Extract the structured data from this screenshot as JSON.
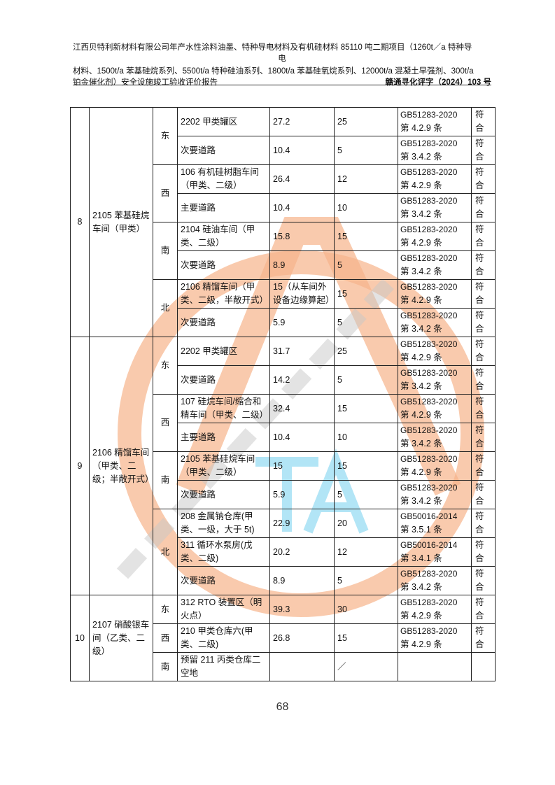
{
  "header": {
    "title_line1": "江西贝特利新材料有限公司年产水性涂料油墨、特种导电材料及有机硅材料 85110 吨二期项目（1260t／a 特种导",
    "title_line1b": "电",
    "title_line2": "材料、1500t/a 苯基硅烷系列、5500t/a 特种硅油系列、1800t/a 苯基硅氧烷系列、12000t/a 混凝土早强剂、300t/a",
    "title_line3": "铂金催化剂）安全设施竣工验收评价报告",
    "doc_code": "赣通寻化评字（2024）103 号"
  },
  "table": {
    "groups": [
      {
        "no": "8",
        "name": "2105 苯基硅烷车间（甲类）",
        "dirs": [
          {
            "dir": "东",
            "rows": [
              {
                "target": "2202 甲类罐区",
                "actual": "27.2",
                "required": "25",
                "std": "GB51283-2020",
                "clause": "第 4.2.9 条",
                "result": "符合"
              },
              {
                "target": "次要道路",
                "actual": "10.4",
                "required": "5",
                "std": "GB51283-2020",
                "clause": "第 3.4.2 条",
                "result": "符合"
              }
            ]
          },
          {
            "dir": "西",
            "rows": [
              {
                "target": "106 有机硅树脂车间（甲类、二级）",
                "actual": "26.4",
                "required": "12",
                "std": "GB51283-2020",
                "clause": "第 4.2.9 条",
                "result": "符合"
              },
              {
                "target": "主要道路",
                "actual": "10.4",
                "required": "10",
                "std": "GB51283-2020",
                "clause": "第 3.4.2 条",
                "result": "符合"
              }
            ]
          },
          {
            "dir": "南",
            "rows": [
              {
                "target": "2104 硅油车间（甲类、二级）",
                "actual": "15.8",
                "required": "15",
                "std": "GB51283-2020",
                "clause": "第 4.2.9 条",
                "result": "符合"
              },
              {
                "target": "次要道路",
                "actual": "8.9",
                "required": "5",
                "std": "GB51283-2020",
                "clause": "第 3.4.2 条",
                "result": "符合"
              }
            ]
          },
          {
            "dir": "北",
            "rows": [
              {
                "target": "2106 精馏车间（甲类、二级，半敞开式）",
                "actual": "15（从车间外设备边缘算起）",
                "required": "15",
                "std": "GB51283-2020",
                "clause": "第 4.2.9 条",
                "result": "符合"
              },
              {
                "target": "次要道路",
                "actual": "5.9",
                "required": "5",
                "std": "GB51283-2020",
                "clause": "第 3.4.2 条",
                "result": "符合"
              }
            ]
          }
        ]
      },
      {
        "no": "9",
        "name": "2106 精馏车间（甲类、二级；半敞开式）",
        "dirs": [
          {
            "dir": "东",
            "rows": [
              {
                "target": "2202 甲类罐区",
                "actual": "31.7",
                "required": "25",
                "std": "GB51283-2020",
                "clause": "第 4.2.9 条",
                "result": "符合"
              },
              {
                "target": "次要道路",
                "actual": "14.2",
                "required": "5",
                "std": "GB51283-2020",
                "clause": "第 3.4.2 条",
                "result": "符合"
              }
            ]
          },
          {
            "dir": "西",
            "rows": [
              {
                "target": "107 硅烷车间/缩合和精车间（甲类、二级）",
                "actual": "32.4",
                "required": "15",
                "std": "GB51283-2020",
                "clause": "第 4.2.9 条",
                "result": "符合"
              },
              {
                "target": "主要道路",
                "actual": "10.4",
                "required": "10",
                "std": "GB51283-2020",
                "clause": "第 3.4.2 条",
                "result": "符合"
              }
            ]
          },
          {
            "dir": "南",
            "rows": [
              {
                "target": "2105 苯基硅烷车间（甲类、二级）",
                "actual": "15",
                "required": "15",
                "std": "GB51283-2020",
                "clause": "第 4.2.9 条",
                "result": "符合"
              },
              {
                "target": "次要道路",
                "actual": "5.9",
                "required": "5",
                "std": "GB51283-2020",
                "clause": "第 3.4.2 条",
                "result": "符合"
              }
            ]
          },
          {
            "dir": "北",
            "rows": [
              {
                "target": "208 金属钠仓库(甲类、一级，大于 5t)",
                "actual": "22.9",
                "required": "20",
                "std": "GB50016-2014",
                "clause": "第 3.5.1 条",
                "result": "符合"
              },
              {
                "target": "311 循环水泵房(戊类、二级)",
                "actual": "20.2",
                "required": "12",
                "std": "GB50016-2014",
                "clause": "第 3.4.1 条",
                "result": "符合"
              },
              {
                "target": "次要道路",
                "actual": "8.9",
                "required": "5",
                "std": "GB51283-2020",
                "clause": "第 3.4.2 条",
                "result": "符合"
              }
            ]
          }
        ]
      },
      {
        "no": "10",
        "name": "2107 硝酸银车间（乙类、二级）",
        "dirs": [
          {
            "dir": "东",
            "rows": [
              {
                "target": "312 RTO 装置区（明火点）",
                "actual": "39.3",
                "required": "30",
                "std": "GB51283-2020",
                "clause": "第 4.2.9 条",
                "result": "符合"
              }
            ]
          },
          {
            "dir": "西",
            "rows": [
              {
                "target": "210 甲类仓库六(甲类、二级)",
                "actual": "26.8",
                "required": "15",
                "std": "GB51283-2020",
                "clause": "第 4.2.9 条",
                "result": "符合"
              }
            ]
          },
          {
            "dir": "南",
            "rows": [
              {
                "target": "预留 211 丙类仓库二空地",
                "actual": "",
                "required": "／",
                "std": "",
                "clause": "",
                "result": ""
              }
            ]
          }
        ]
      }
    ]
  },
  "watermark": {
    "colors": {
      "ring": "#f6b48a",
      "text": "#c8c8c8",
      "letters": "#7fd3f0"
    }
  },
  "page_number": "68"
}
